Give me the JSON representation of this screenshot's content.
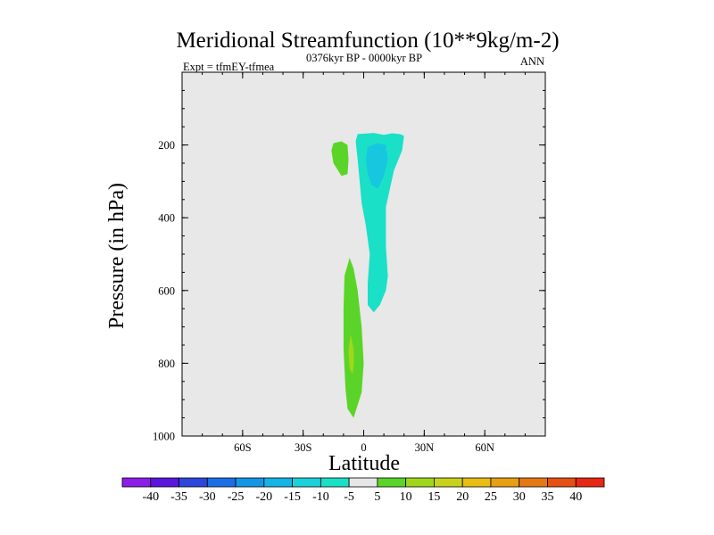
{
  "chart_data": {
    "type": "heatmap",
    "title": "Meridional Streamfunction (10**9kg/m-2)",
    "left_string": "Expt = tfmEY-tfmea",
    "center_string": "0376kyr BP - 0000kyr BP",
    "right_string": "ANN",
    "xlabel": "Latitude",
    "ylabel": "Pressure (in hPa)",
    "xlim": [
      -90,
      90
    ],
    "ylim": [
      0,
      1000
    ],
    "y_reversed": true,
    "x_ticks": [
      {
        "value": -60,
        "label": "60S"
      },
      {
        "value": -30,
        "label": "30S"
      },
      {
        "value": 0,
        "label": "0"
      },
      {
        "value": 30,
        "label": "30N"
      },
      {
        "value": 60,
        "label": "60N"
      }
    ],
    "y_ticks": [
      {
        "value": 200,
        "label": "200"
      },
      {
        "value": 400,
        "label": "400"
      },
      {
        "value": 600,
        "label": "600"
      },
      {
        "value": 800,
        "label": "800"
      },
      {
        "value": 1000,
        "label": "1000"
      }
    ],
    "background_color": "#e8e8e8",
    "grid": false,
    "contour_regions": [
      {
        "name": "upper-positive-cell",
        "value": 7.5,
        "color": "#5ad428",
        "outline": [
          [
            -15,
            195
          ],
          [
            -11,
            190
          ],
          [
            -8,
            200
          ],
          [
            -7.5,
            240
          ],
          [
            -8,
            280
          ],
          [
            -11,
            285
          ],
          [
            -15,
            250
          ],
          [
            -16,
            215
          ]
        ]
      },
      {
        "name": "lower-positive-cell",
        "value": 7.5,
        "color": "#5ad428",
        "outline": [
          [
            -7,
            510
          ],
          [
            -5,
            540
          ],
          [
            -3,
            600
          ],
          [
            -1,
            700
          ],
          [
            0,
            800
          ],
          [
            -1,
            880
          ],
          [
            -5,
            950
          ],
          [
            -8,
            925
          ],
          [
            -9,
            870
          ],
          [
            -10,
            760
          ],
          [
            -10,
            650
          ],
          [
            -9.5,
            560
          ]
        ]
      },
      {
        "name": "lower-positive-core",
        "value": 12.5,
        "color": "#a0d71c",
        "outline": [
          [
            -6.5,
            720
          ],
          [
            -5,
            760
          ],
          [
            -4.8,
            800
          ],
          [
            -5.5,
            830
          ],
          [
            -7,
            815
          ],
          [
            -7.5,
            765
          ]
        ]
      },
      {
        "name": "upper-negative-cell",
        "value": -7.5,
        "color": "#1ae0c8",
        "outline": [
          [
            -3,
            170
          ],
          [
            5,
            167
          ],
          [
            10,
            172
          ],
          [
            14,
            168
          ],
          [
            18,
            170
          ],
          [
            20,
            175
          ],
          [
            19,
            215
          ],
          [
            15,
            270
          ],
          [
            11,
            370
          ],
          [
            11,
            480
          ],
          [
            12,
            560
          ],
          [
            11,
            600
          ],
          [
            8,
            640
          ],
          [
            5,
            660
          ],
          [
            2,
            640
          ],
          [
            2,
            580
          ],
          [
            3,
            500
          ],
          [
            1,
            420
          ],
          [
            -1,
            360
          ],
          [
            -2,
            300
          ],
          [
            -3,
            240
          ],
          [
            -4,
            190
          ]
        ]
      },
      {
        "name": "upper-negative-core",
        "value": -12.5,
        "color": "#17c7e0",
        "outline": [
          [
            2,
            205
          ],
          [
            7,
            195
          ],
          [
            11,
            200
          ],
          [
            12,
            240
          ],
          [
            10,
            285
          ],
          [
            7,
            320
          ],
          [
            4,
            310
          ],
          [
            2,
            280
          ],
          [
            1,
            240
          ]
        ]
      }
    ],
    "colorbar": {
      "labels": [
        "-40",
        "-35",
        "-30",
        "-25",
        "-20",
        "-15",
        "-10",
        "-5",
        "5",
        "10",
        "15",
        "20",
        "25",
        "30",
        "35",
        "40"
      ],
      "colors": [
        "#8c1ee6",
        "#5a14dc",
        "#2d46dc",
        "#1a6ee6",
        "#1496e6",
        "#14b4e6",
        "#1ad2d8",
        "#1ae0c8",
        "#e6e6e6",
        "#5ad428",
        "#a0d71c",
        "#c8d21c",
        "#e6be14",
        "#e6a014",
        "#e67814",
        "#e65014",
        "#e62814"
      ]
    }
  }
}
